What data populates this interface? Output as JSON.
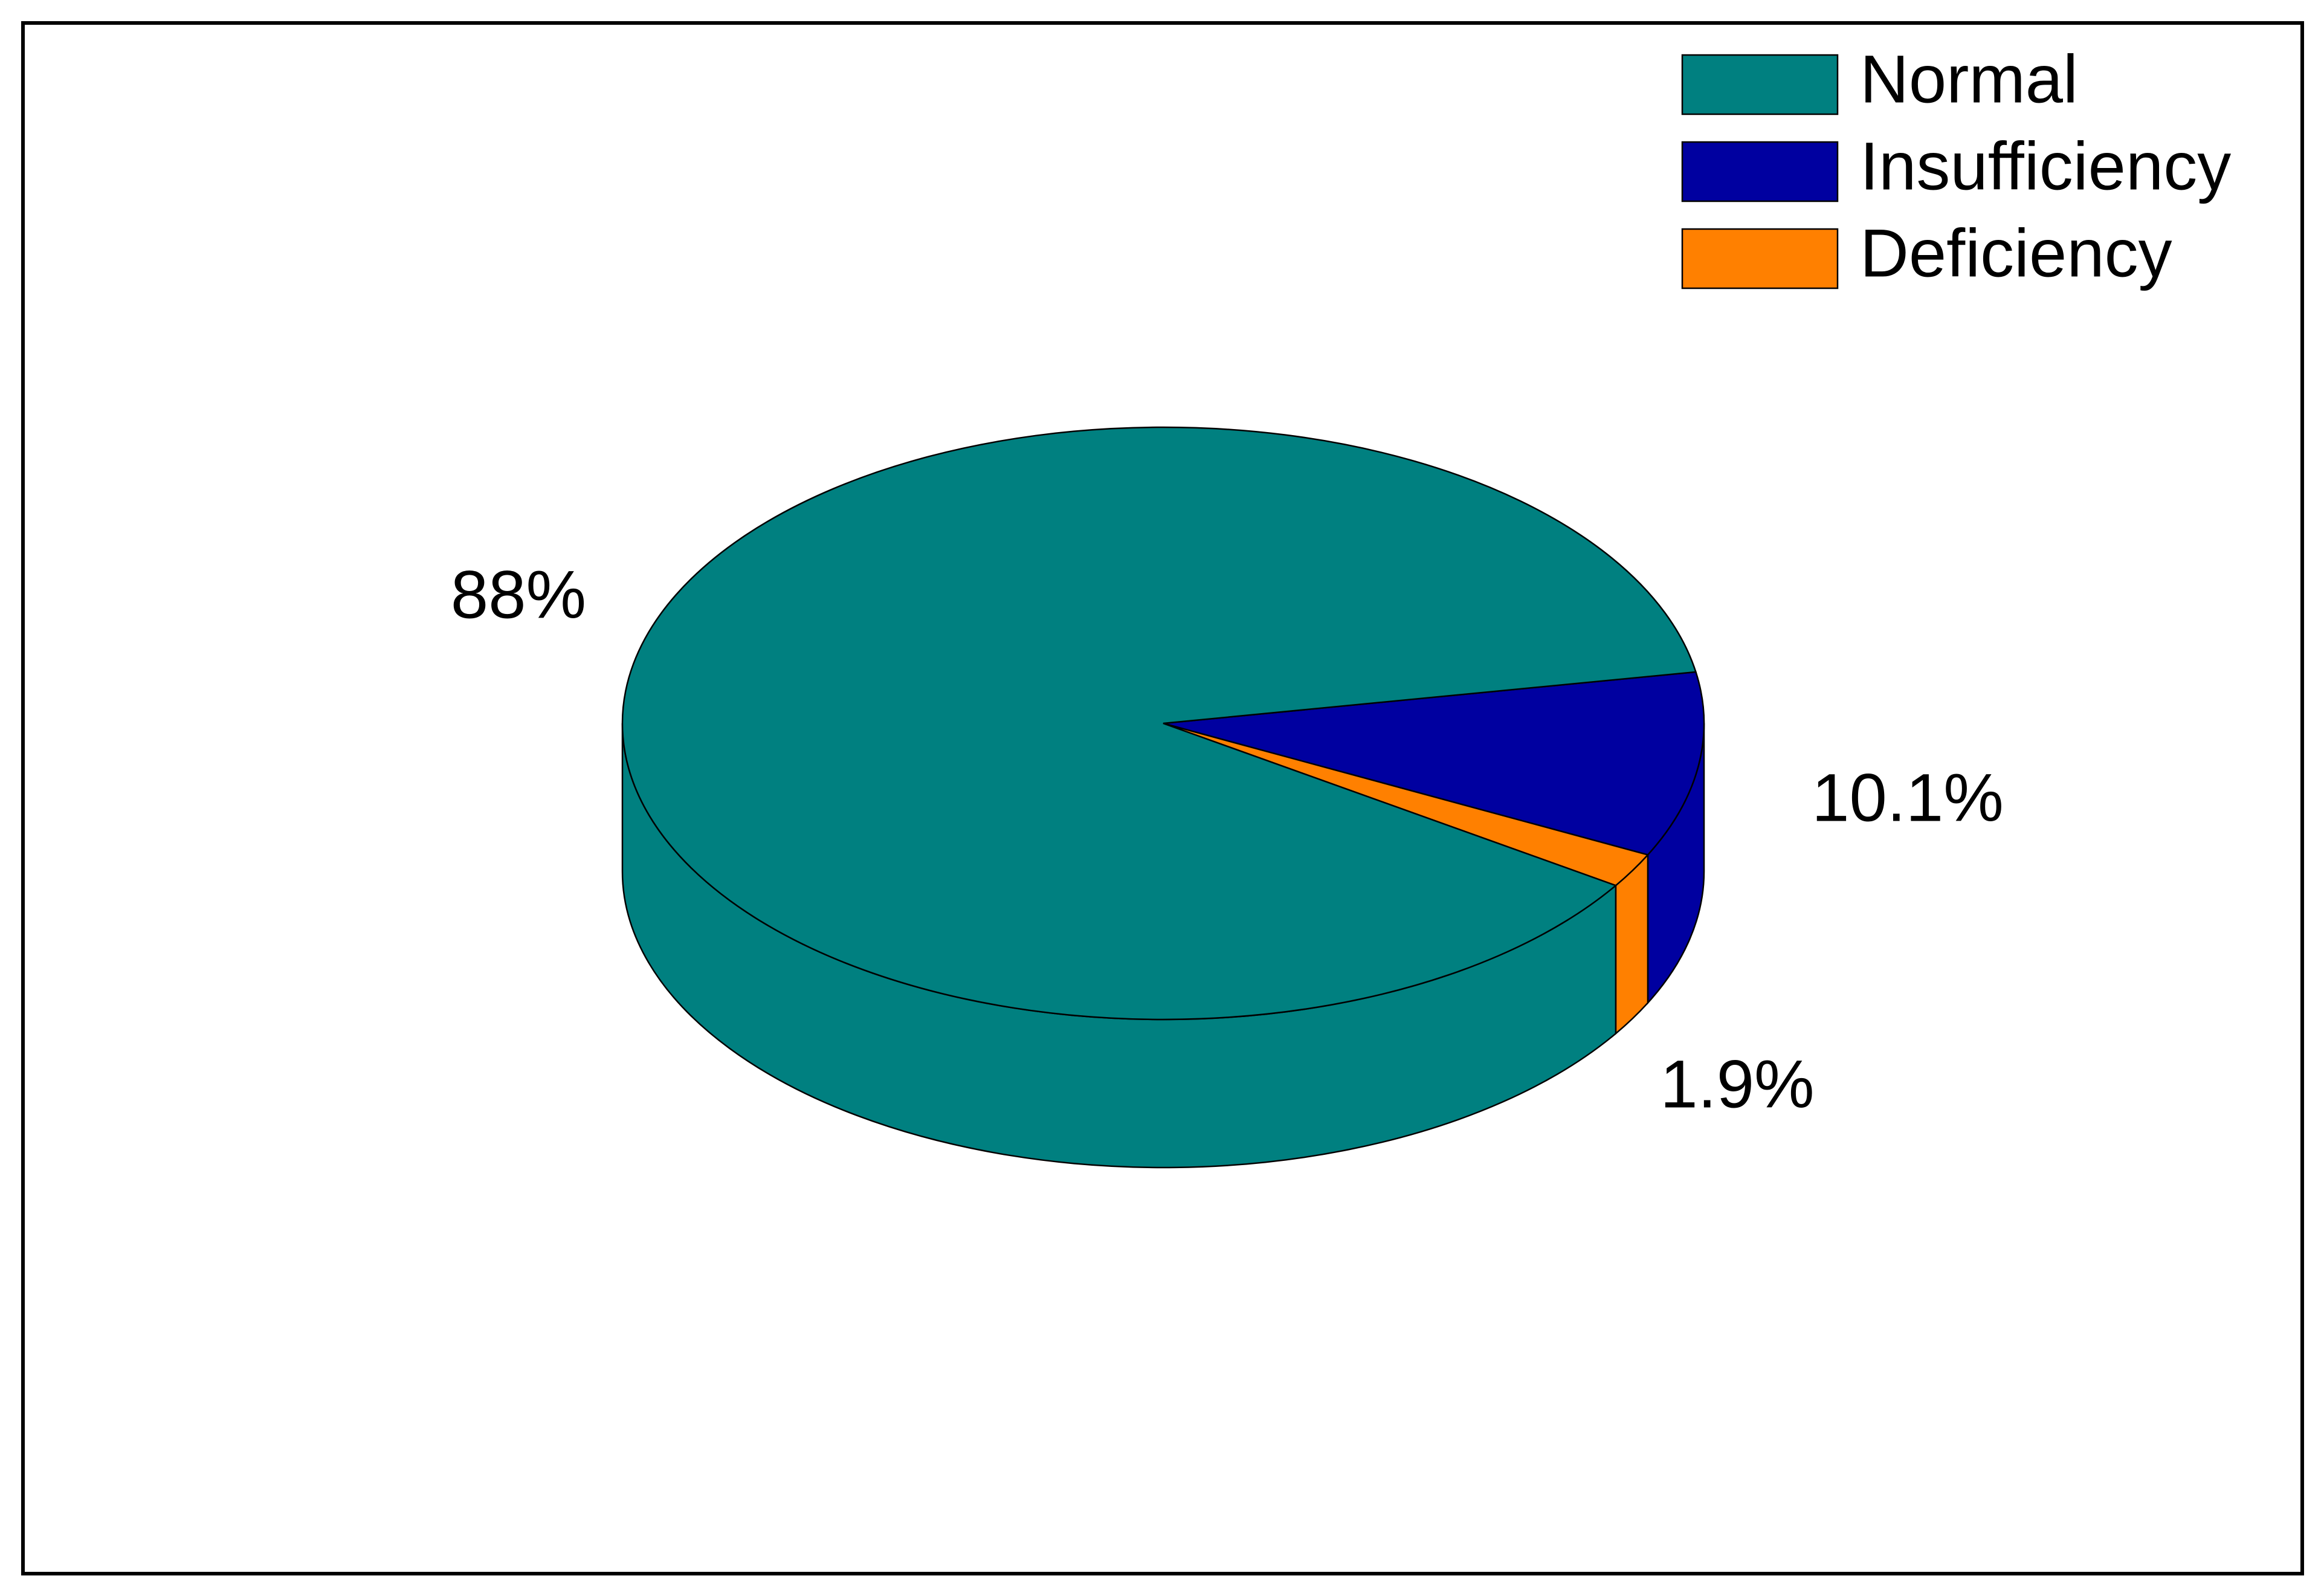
{
  "chart_data": {
    "type": "pie3d",
    "categories": [
      "Normal",
      "Insufficiency",
      "Deficiency"
    ],
    "values": [
      88,
      10.1,
      1.9
    ],
    "value_labels": [
      "88%",
      "10.1%",
      "1.9%"
    ],
    "colors": [
      "#008080",
      "#0000a0",
      "#ff8000"
    ],
    "legend": "top-right"
  }
}
